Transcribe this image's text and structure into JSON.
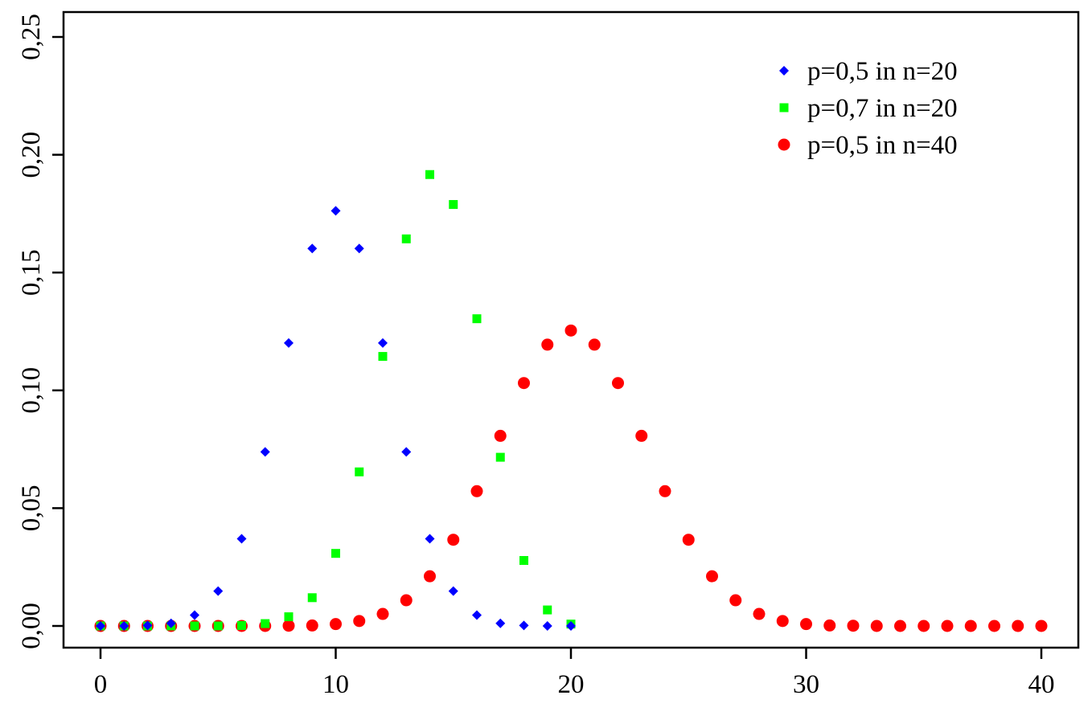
{
  "chart_data": {
    "type": "scatter",
    "title": "",
    "xlabel": "",
    "ylabel": "",
    "xlim": [
      0,
      40
    ],
    "ylim": [
      0,
      0.25
    ],
    "x_ticks": [
      {
        "value": 0,
        "label": "0"
      },
      {
        "value": 10,
        "label": "10"
      },
      {
        "value": 20,
        "label": "20"
      },
      {
        "value": 30,
        "label": "30"
      },
      {
        "value": 40,
        "label": "40"
      }
    ],
    "y_ticks": [
      {
        "value": 0,
        "label": "0,00"
      },
      {
        "value": 0.05,
        "label": "0,05"
      },
      {
        "value": 0.1,
        "label": "0,10"
      },
      {
        "value": 0.15,
        "label": "0,15"
      },
      {
        "value": 0.2,
        "label": "0,20"
      },
      {
        "value": 0.25,
        "label": "0,25"
      }
    ],
    "grid": false,
    "legend_position": "top-right",
    "series": [
      {
        "name": "p=0,5 in n=20",
        "marker": "diamond",
        "color": "#0000ff",
        "x": [
          0,
          1,
          2,
          3,
          4,
          5,
          6,
          7,
          8,
          9,
          10,
          11,
          12,
          13,
          14,
          15,
          16,
          17,
          18,
          19,
          20
        ],
        "values": [
          0.0,
          0.0,
          0.0002,
          0.0011,
          0.0046,
          0.0148,
          0.037,
          0.0739,
          0.1201,
          0.1602,
          0.1762,
          0.1602,
          0.1201,
          0.0739,
          0.037,
          0.0148,
          0.0046,
          0.0011,
          0.0002,
          0.0,
          0.0
        ]
      },
      {
        "name": "p=0,7 in n=20",
        "marker": "square",
        "color": "#00ff00",
        "x": [
          0,
          1,
          2,
          3,
          4,
          5,
          6,
          7,
          8,
          9,
          10,
          11,
          12,
          13,
          14,
          15,
          16,
          17,
          18,
          19,
          20
        ],
        "values": [
          0.0,
          0.0,
          0.0,
          0.0,
          0.0,
          0.0,
          0.0002,
          0.001,
          0.0039,
          0.012,
          0.0308,
          0.0654,
          0.1144,
          0.1643,
          0.1916,
          0.1789,
          0.1304,
          0.0716,
          0.0278,
          0.0068,
          0.0008
        ]
      },
      {
        "name": "p=0,5 in n=40",
        "marker": "circle",
        "color": "#ff0000",
        "x": [
          0,
          1,
          2,
          3,
          4,
          5,
          6,
          7,
          8,
          9,
          10,
          11,
          12,
          13,
          14,
          15,
          16,
          17,
          18,
          19,
          20,
          21,
          22,
          23,
          24,
          25,
          26,
          27,
          28,
          29,
          30,
          31,
          32,
          33,
          34,
          35,
          36,
          37,
          38,
          39,
          40
        ],
        "values": [
          0.0,
          0.0,
          0.0,
          0.0,
          0.0,
          0.0,
          0.0,
          0.0,
          0.0001,
          0.0002,
          0.0008,
          0.0021,
          0.0051,
          0.0109,
          0.0211,
          0.0366,
          0.0572,
          0.0807,
          0.1031,
          0.1194,
          0.1254,
          0.1194,
          0.1031,
          0.0807,
          0.0572,
          0.0366,
          0.0211,
          0.0109,
          0.0051,
          0.0021,
          0.0008,
          0.0002,
          0.0001,
          0.0,
          0.0,
          0.0,
          0.0,
          0.0,
          0.0,
          0.0,
          0.0
        ]
      }
    ]
  }
}
